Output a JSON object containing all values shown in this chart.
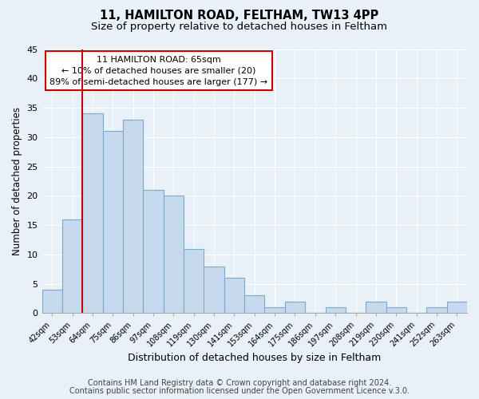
{
  "title": "11, HAMILTON ROAD, FELTHAM, TW13 4PP",
  "subtitle": "Size of property relative to detached houses in Feltham",
  "xlabel": "Distribution of detached houses by size in Feltham",
  "ylabel": "Number of detached properties",
  "bin_labels": [
    "42sqm",
    "53sqm",
    "64sqm",
    "75sqm",
    "86sqm",
    "97sqm",
    "108sqm",
    "119sqm",
    "130sqm",
    "141sqm",
    "153sqm",
    "164sqm",
    "175sqm",
    "186sqm",
    "197sqm",
    "208sqm",
    "219sqm",
    "230sqm",
    "241sqm",
    "252sqm",
    "263sqm"
  ],
  "bar_values": [
    4,
    16,
    34,
    31,
    33,
    21,
    20,
    11,
    8,
    6,
    3,
    1,
    2,
    0,
    1,
    0,
    2,
    1,
    0,
    1,
    2
  ],
  "bar_color": "#c7d9ed",
  "bar_edge_color": "#7aabcf",
  "vline_x_index": 2,
  "vline_color": "#cc0000",
  "annotation_line1": "11 HAMILTON ROAD: 65sqm",
  "annotation_line2": "← 10% of detached houses are smaller (20)",
  "annotation_line3": "89% of semi-detached houses are larger (177) →",
  "ylim": [
    0,
    45
  ],
  "yticks": [
    0,
    5,
    10,
    15,
    20,
    25,
    30,
    35,
    40,
    45
  ],
  "footer_line1": "Contains HM Land Registry data © Crown copyright and database right 2024.",
  "footer_line2": "Contains public sector information licensed under the Open Government Licence v.3.0.",
  "background_color": "#e8f0f8",
  "plot_bg_color": "#e8f0f8",
  "grid_color": "#ffffff",
  "title_fontsize": 10.5,
  "subtitle_fontsize": 9.5,
  "annotation_fontsize": 8,
  "xlabel_fontsize": 9,
  "ylabel_fontsize": 8.5,
  "footer_fontsize": 7
}
